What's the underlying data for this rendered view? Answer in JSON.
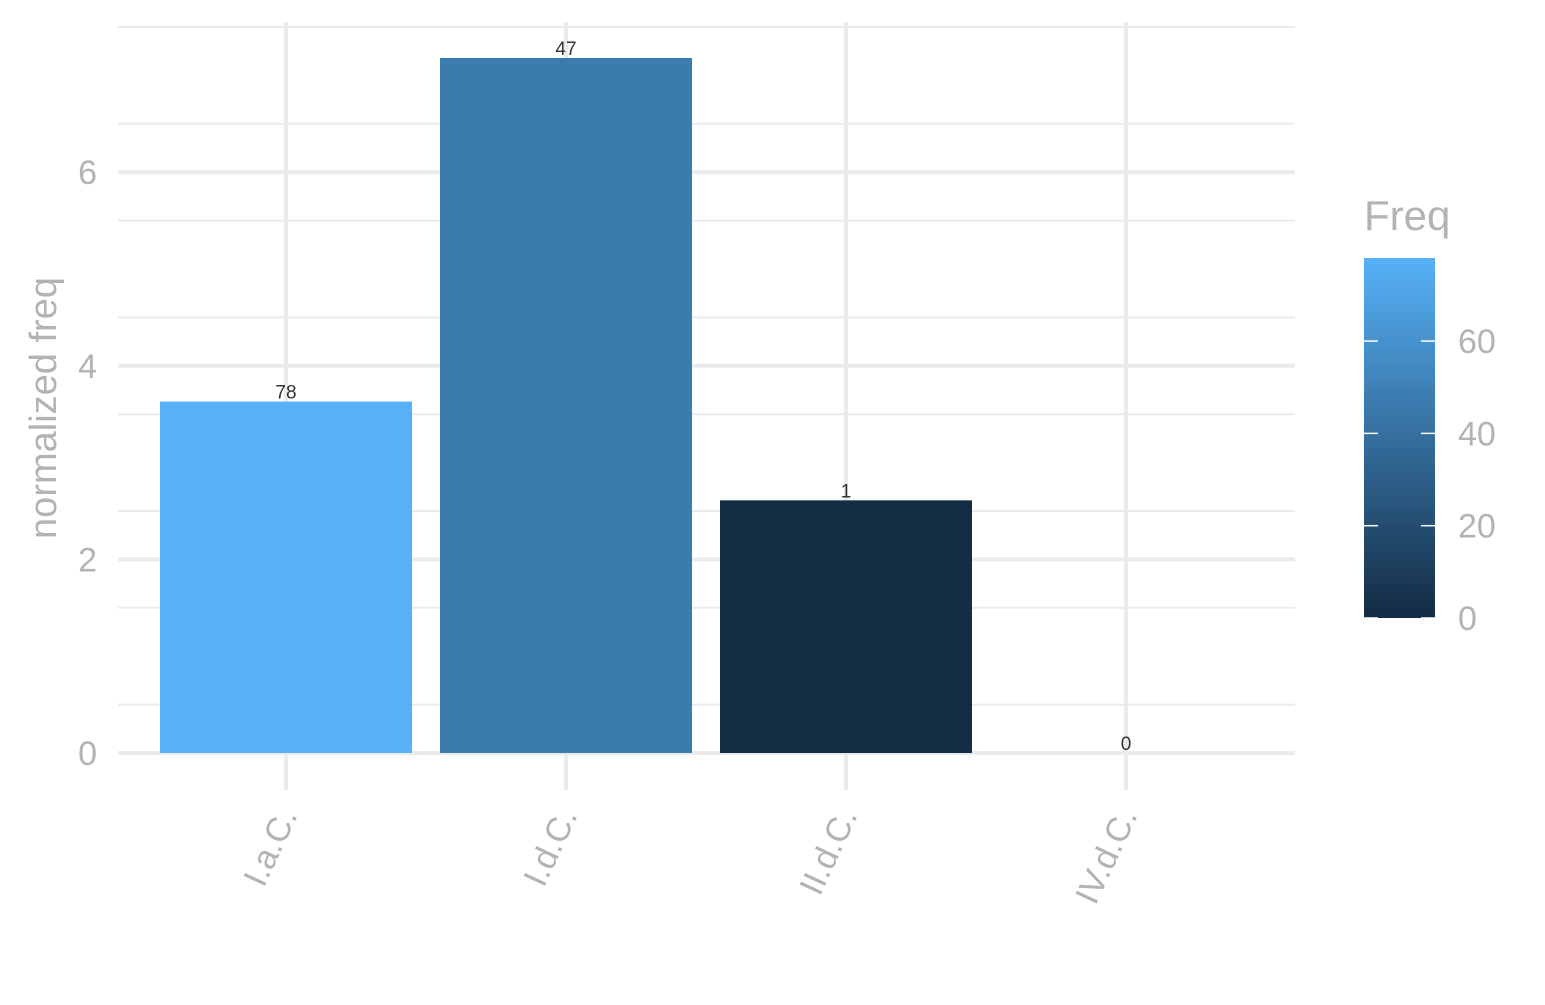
{
  "chart_data": {
    "type": "bar",
    "title": "",
    "xlabel": "",
    "ylabel": "normalized freq",
    "categories": [
      "I.a.C.",
      "I.d.C.",
      "II.d.C.",
      "IV.d.C."
    ],
    "values": [
      3.63,
      7.18,
      2.61,
      0
    ],
    "data_labels": [
      "78",
      "47",
      "1",
      "0"
    ],
    "fill_values": [
      78,
      47,
      1,
      0
    ],
    "ylim": [
      0,
      7.5
    ],
    "yticks": [
      0,
      2,
      4,
      6
    ],
    "grid": true,
    "legend": {
      "title": "Freq",
      "placement": "right",
      "type": "colorbar",
      "range": [
        0,
        78
      ],
      "ticks": [
        0,
        20,
        40,
        60
      ],
      "low_color": "#132B43",
      "high_color": "#56B1F7"
    }
  }
}
